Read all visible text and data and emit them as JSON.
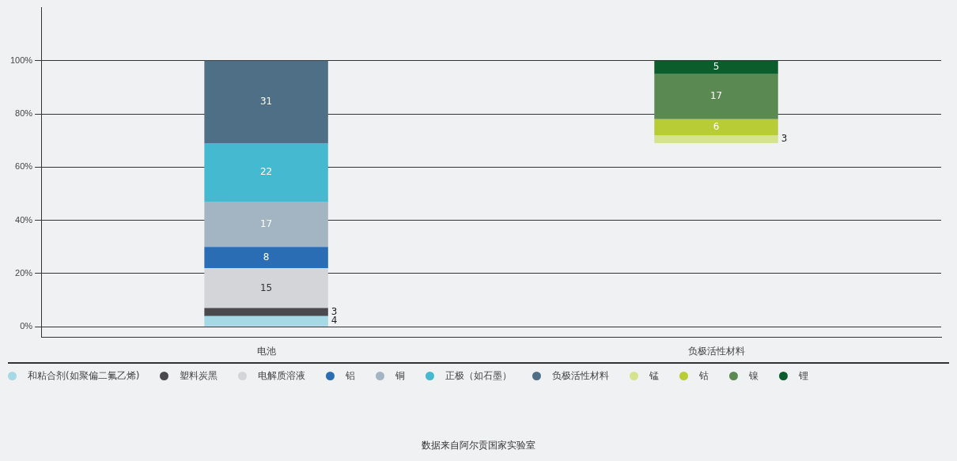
{
  "chart_data": {
    "type": "bar",
    "categories": [
      "电池",
      "负极活性材料"
    ],
    "series": [
      {
        "name": "和粘合剂(如聚偏二氟乙烯)",
        "color": "#a7d8e6",
        "values": [
          4,
          null
        ],
        "base": [
          0,
          null
        ]
      },
      {
        "name": "塑料炭黑",
        "color": "#4a4a4e",
        "values": [
          3,
          null
        ],
        "base": [
          4,
          null
        ]
      },
      {
        "name": "电解质溶液",
        "color": "#d3d5d9",
        "values": [
          15,
          null
        ],
        "base": [
          7,
          null
        ]
      },
      {
        "name": "铝",
        "color": "#2a6db5",
        "values": [
          8,
          null
        ],
        "base": [
          22,
          null
        ]
      },
      {
        "name": "铜",
        "color": "#a3b4c2",
        "values": [
          17,
          null
        ],
        "base": [
          30,
          null
        ]
      },
      {
        "name": "正极（如石墨）",
        "color": "#44b9cf",
        "values": [
          22,
          null
        ],
        "base": [
          47,
          null
        ]
      },
      {
        "name": "负极活性材料",
        "color": "#4f6f86",
        "values": [
          31,
          null
        ],
        "base": [
          69,
          null
        ]
      },
      {
        "name": "锰",
        "color": "#d6e38e",
        "values": [
          null,
          3
        ],
        "base": [
          null,
          69
        ]
      },
      {
        "name": "钴",
        "color": "#b7cc35",
        "values": [
          null,
          6
        ],
        "base": [
          null,
          72
        ]
      },
      {
        "name": "镍",
        "color": "#5a8a52",
        "values": [
          null,
          17
        ],
        "base": [
          null,
          78
        ]
      },
      {
        "name": "锂",
        "color": "#0b5e2b",
        "values": [
          null,
          5
        ],
        "base": [
          null,
          95
        ]
      }
    ],
    "ylim": [
      -4,
      120
    ],
    "yticks": [
      {
        "value": 0,
        "label": "0%"
      },
      {
        "value": 20,
        "label": "20%"
      },
      {
        "value": 40,
        "label": "40%"
      },
      {
        "value": 60,
        "label": "60%"
      },
      {
        "value": 80,
        "label": "80%"
      },
      {
        "value": 100,
        "label": "100%"
      }
    ],
    "grid": "y",
    "legend": "bottom",
    "data_labels": true,
    "annotations": [
      "数据来自阿尔贡国家实验室"
    ]
  }
}
